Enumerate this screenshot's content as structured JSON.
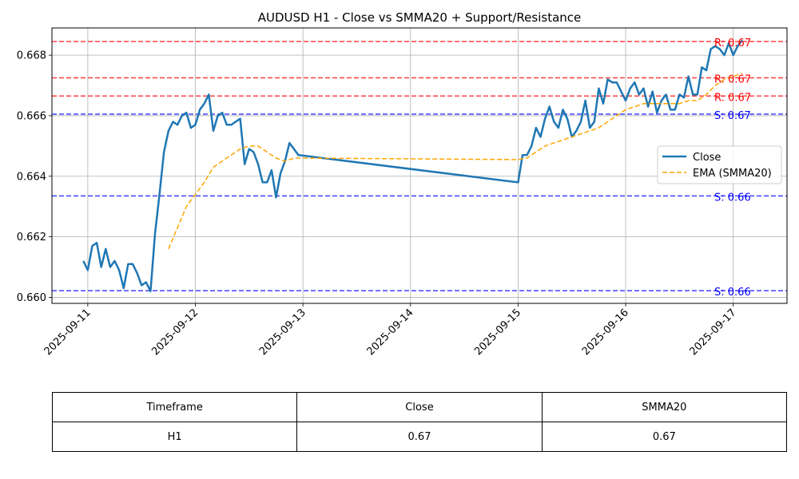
{
  "chart_data": {
    "type": "line",
    "title": "AUDUSD H1 - Close vs SMMA20 + Support/Resistance",
    "xlabel": "",
    "ylabel": "",
    "ylim": [
      0.6598,
      0.6689
    ],
    "xlim": [
      "2025-09-10 16:00",
      "2025-09-17 12:00"
    ],
    "y_ticks": [
      "0.660",
      "0.662",
      "0.664",
      "0.666",
      "0.668"
    ],
    "x_ticks": [
      "2025-09-11",
      "2025-09-12",
      "2025-09-13",
      "2025-09-14",
      "2025-09-15",
      "2025-09-16",
      "2025-09-17"
    ],
    "grid": true,
    "legend_placement": "center-right",
    "series": [
      {
        "name": "Close",
        "color": "#1f77b4",
        "style": "solid",
        "points": [
          [
            "2025-09-10 23:00",
            0.6612
          ],
          [
            "2025-09-11 00:00",
            0.6609
          ],
          [
            "2025-09-11 01:00",
            0.6617
          ],
          [
            "2025-09-11 02:00",
            0.6618
          ],
          [
            "2025-09-11 03:00",
            0.661
          ],
          [
            "2025-09-11 04:00",
            0.6616
          ],
          [
            "2025-09-11 05:00",
            0.661
          ],
          [
            "2025-09-11 06:00",
            0.6612
          ],
          [
            "2025-09-11 07:00",
            0.6609
          ],
          [
            "2025-09-11 08:00",
            0.6603
          ],
          [
            "2025-09-11 09:00",
            0.6611
          ],
          [
            "2025-09-11 10:00",
            0.6611
          ],
          [
            "2025-09-11 11:00",
            0.6608
          ],
          [
            "2025-09-11 12:00",
            0.6604
          ],
          [
            "2025-09-11 13:00",
            0.6605
          ],
          [
            "2025-09-11 14:00",
            0.6602
          ],
          [
            "2025-09-11 15:00",
            0.6621
          ],
          [
            "2025-09-11 16:00",
            0.6634
          ],
          [
            "2025-09-11 17:00",
            0.6648
          ],
          [
            "2025-09-11 18:00",
            0.6655
          ],
          [
            "2025-09-11 19:00",
            0.6658
          ],
          [
            "2025-09-11 20:00",
            0.6657
          ],
          [
            "2025-09-11 21:00",
            0.666
          ],
          [
            "2025-09-11 22:00",
            0.6661
          ],
          [
            "2025-09-11 23:00",
            0.6656
          ],
          [
            "2025-09-12 00:00",
            0.6657
          ],
          [
            "2025-09-12 01:00",
            0.6662
          ],
          [
            "2025-09-12 02:00",
            0.6664
          ],
          [
            "2025-09-12 03:00",
            0.6667
          ],
          [
            "2025-09-12 04:00",
            0.6655
          ],
          [
            "2025-09-12 05:00",
            0.666
          ],
          [
            "2025-09-12 06:00",
            0.6661
          ],
          [
            "2025-09-12 07:00",
            0.6657
          ],
          [
            "2025-09-12 08:00",
            0.6657
          ],
          [
            "2025-09-12 09:00",
            0.6658
          ],
          [
            "2025-09-12 10:00",
            0.6659
          ],
          [
            "2025-09-12 11:00",
            0.6644
          ],
          [
            "2025-09-12 12:00",
            0.6649
          ],
          [
            "2025-09-12 13:00",
            0.6648
          ],
          [
            "2025-09-12 14:00",
            0.6644
          ],
          [
            "2025-09-12 15:00",
            0.6638
          ],
          [
            "2025-09-12 16:00",
            0.6638
          ],
          [
            "2025-09-12 17:00",
            0.6642
          ],
          [
            "2025-09-12 18:00",
            0.6633
          ],
          [
            "2025-09-12 19:00",
            0.6641
          ],
          [
            "2025-09-12 20:00",
            0.6645
          ],
          [
            "2025-09-12 21:00",
            0.6651
          ],
          [
            "2025-09-12 22:00",
            0.6649
          ],
          [
            "2025-09-12 23:00",
            0.6647
          ],
          [
            "2025-09-15 00:00",
            0.6638
          ],
          [
            "2025-09-15 01:00",
            0.6647
          ],
          [
            "2025-09-15 02:00",
            0.6647
          ],
          [
            "2025-09-15 03:00",
            0.665
          ],
          [
            "2025-09-15 04:00",
            0.6656
          ],
          [
            "2025-09-15 05:00",
            0.6653
          ],
          [
            "2025-09-15 06:00",
            0.6659
          ],
          [
            "2025-09-15 07:00",
            0.6663
          ],
          [
            "2025-09-15 08:00",
            0.6658
          ],
          [
            "2025-09-15 09:00",
            0.6656
          ],
          [
            "2025-09-15 10:00",
            0.6662
          ],
          [
            "2025-09-15 11:00",
            0.6659
          ],
          [
            "2025-09-15 12:00",
            0.6653
          ],
          [
            "2025-09-15 13:00",
            0.6655
          ],
          [
            "2025-09-15 14:00",
            0.6658
          ],
          [
            "2025-09-15 15:00",
            0.6665
          ],
          [
            "2025-09-15 16:00",
            0.6656
          ],
          [
            "2025-09-15 17:00",
            0.6658
          ],
          [
            "2025-09-15 18:00",
            0.6669
          ],
          [
            "2025-09-15 19:00",
            0.6664
          ],
          [
            "2025-09-15 20:00",
            0.6672
          ],
          [
            "2025-09-15 21:00",
            0.6671
          ],
          [
            "2025-09-15 22:00",
            0.6671
          ],
          [
            "2025-09-15 23:00",
            0.6668
          ],
          [
            "2025-09-16 00:00",
            0.6665
          ],
          [
            "2025-09-16 01:00",
            0.6669
          ],
          [
            "2025-09-16 02:00",
            0.6671
          ],
          [
            "2025-09-16 03:00",
            0.6667
          ],
          [
            "2025-09-16 04:00",
            0.6669
          ],
          [
            "2025-09-16 05:00",
            0.6663
          ],
          [
            "2025-09-16 06:00",
            0.6668
          ],
          [
            "2025-09-16 07:00",
            0.6661
          ],
          [
            "2025-09-16 08:00",
            0.6665
          ],
          [
            "2025-09-16 09:00",
            0.6667
          ],
          [
            "2025-09-16 10:00",
            0.6662
          ],
          [
            "2025-09-16 11:00",
            0.6662
          ],
          [
            "2025-09-16 12:00",
            0.6667
          ],
          [
            "2025-09-16 13:00",
            0.6666
          ],
          [
            "2025-09-16 14:00",
            0.6673
          ],
          [
            "2025-09-16 15:00",
            0.6667
          ],
          [
            "2025-09-16 16:00",
            0.6667
          ],
          [
            "2025-09-16 17:00",
            0.6676
          ],
          [
            "2025-09-16 18:00",
            0.6675
          ],
          [
            "2025-09-16 19:00",
            0.6682
          ],
          [
            "2025-09-16 20:00",
            0.6683
          ],
          [
            "2025-09-16 21:00",
            0.6682
          ],
          [
            "2025-09-16 22:00",
            0.668
          ],
          [
            "2025-09-16 23:00",
            0.6684
          ],
          [
            "2025-09-17 00:00",
            0.668
          ],
          [
            "2025-09-17 01:00",
            0.6683
          ],
          [
            "2025-09-17 02:00",
            0.6685
          ]
        ]
      },
      {
        "name": "EMA (SMMA20)",
        "color": "#ffa500",
        "style": "dashed",
        "points": [
          [
            "2025-09-11 18:00",
            0.6616
          ],
          [
            "2025-09-11 20:00",
            0.6623
          ],
          [
            "2025-09-11 22:00",
            0.663
          ],
          [
            "2025-09-12 00:00",
            0.6634
          ],
          [
            "2025-09-12 02:00",
            0.6638
          ],
          [
            "2025-09-12 04:00",
            0.6643
          ],
          [
            "2025-09-12 06:00",
            0.6645
          ],
          [
            "2025-09-12 08:00",
            0.6647
          ],
          [
            "2025-09-12 10:00",
            0.6649
          ],
          [
            "2025-09-12 12:00",
            0.665
          ],
          [
            "2025-09-12 14:00",
            0.665
          ],
          [
            "2025-09-12 16:00",
            0.6648
          ],
          [
            "2025-09-12 18:00",
            0.6646
          ],
          [
            "2025-09-12 20:00",
            0.6645
          ],
          [
            "2025-09-12 22:00",
            0.6646
          ],
          [
            "2025-09-13 00:00",
            0.6646
          ],
          [
            "2025-09-15 00:00",
            0.66455
          ],
          [
            "2025-09-15 02:00",
            0.6646
          ],
          [
            "2025-09-15 04:00",
            0.6648
          ],
          [
            "2025-09-15 06:00",
            0.665
          ],
          [
            "2025-09-15 08:00",
            0.6651
          ],
          [
            "2025-09-15 10:00",
            0.6652
          ],
          [
            "2025-09-15 12:00",
            0.6653
          ],
          [
            "2025-09-15 14:00",
            0.6654
          ],
          [
            "2025-09-15 16:00",
            0.6655
          ],
          [
            "2025-09-15 18:00",
            0.6656
          ],
          [
            "2025-09-15 20:00",
            0.6658
          ],
          [
            "2025-09-15 22:00",
            0.666
          ],
          [
            "2025-09-16 00:00",
            0.6662
          ],
          [
            "2025-09-16 02:00",
            0.6663
          ],
          [
            "2025-09-16 04:00",
            0.6664
          ],
          [
            "2025-09-16 06:00",
            0.6664
          ],
          [
            "2025-09-16 08:00",
            0.6664
          ],
          [
            "2025-09-16 10:00",
            0.6664
          ],
          [
            "2025-09-16 12:00",
            0.6664
          ],
          [
            "2025-09-16 14:00",
            0.6665
          ],
          [
            "2025-09-16 16:00",
            0.6665
          ],
          [
            "2025-09-16 18:00",
            0.6667
          ],
          [
            "2025-09-16 20:00",
            0.667
          ],
          [
            "2025-09-16 22:00",
            0.6672
          ],
          [
            "2025-09-17 00:00",
            0.6673
          ],
          [
            "2025-09-17 02:00",
            0.6674
          ]
        ]
      }
    ],
    "levels": [
      {
        "kind": "resistance",
        "value": 0.66845,
        "label": "R: 0.67",
        "color": "#ff0000"
      },
      {
        "kind": "resistance",
        "value": 0.66725,
        "label": "R: 0.67",
        "color": "#ff0000"
      },
      {
        "kind": "resistance",
        "value": 0.66665,
        "label": "R: 0.67",
        "color": "#ff0000"
      },
      {
        "kind": "support",
        "value": 0.66605,
        "label": "S: 0.67",
        "color": "#0000ff"
      },
      {
        "kind": "support",
        "value": 0.66335,
        "label": "S: 0.66",
        "color": "#0000ff"
      },
      {
        "kind": "support",
        "value": 0.66022,
        "label": "S: 0.66",
        "color": "#0000ff"
      }
    ]
  },
  "table": {
    "headers": [
      "Timeframe",
      "Close",
      "SMMA20"
    ],
    "rows": [
      [
        "H1",
        "0.67",
        "0.67"
      ]
    ]
  }
}
